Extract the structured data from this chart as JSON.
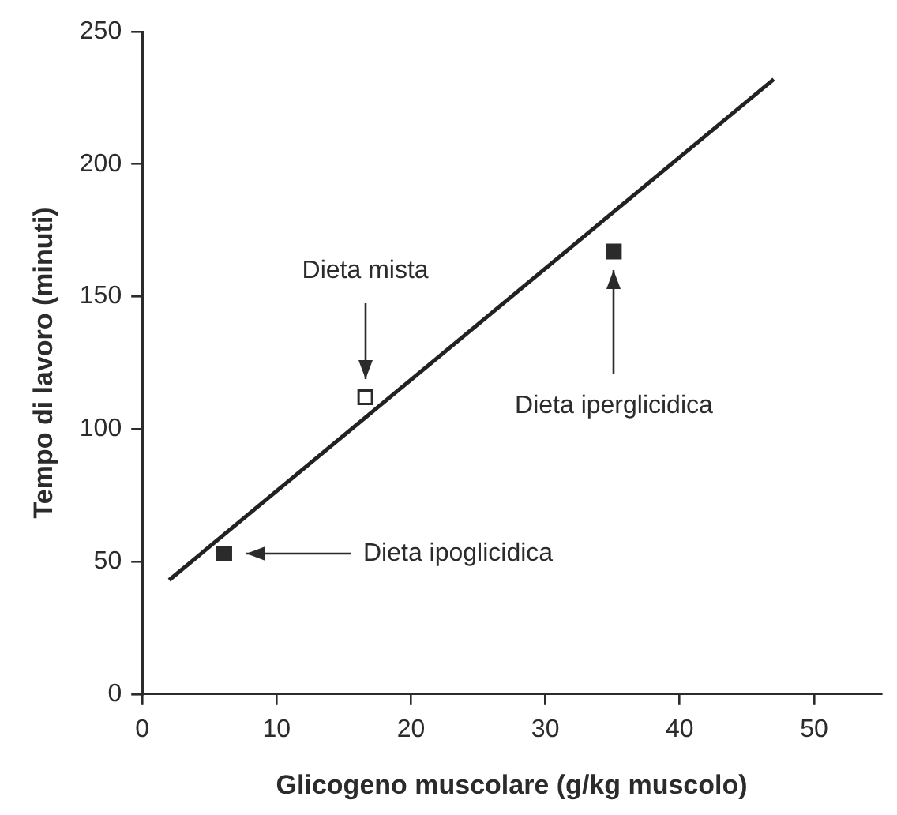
{
  "chart_data": {
    "type": "scatter",
    "xlabel": "Glicogeno muscolare (g/kg muscolo)",
    "ylabel": "Tempo di lavoro (minuti)",
    "xlim": [
      0,
      55
    ],
    "xticks": [
      0,
      10,
      20,
      30,
      40,
      50
    ],
    "ylim": [
      0,
      250
    ],
    "yticks": [
      0,
      50,
      100,
      150,
      200,
      250
    ],
    "grid": false,
    "marker": "square",
    "series": [
      {
        "type": "line",
        "color": "#222222",
        "x": [
          2,
          47
        ],
        "values": [
          43,
          232
        ],
        "marker": "none"
      },
      {
        "color": "#2b2b2b",
        "x": [
          6.1,
          35.1
        ],
        "values": [
          53,
          167
        ]
      },
      {
        "color": "#ffffff",
        "x": [
          16.6
        ],
        "values": [
          112
        ]
      }
    ],
    "annotations": [
      "Dieta mista",
      "Dieta iperglicidica",
      "Dieta ipoglicidica"
    ]
  }
}
